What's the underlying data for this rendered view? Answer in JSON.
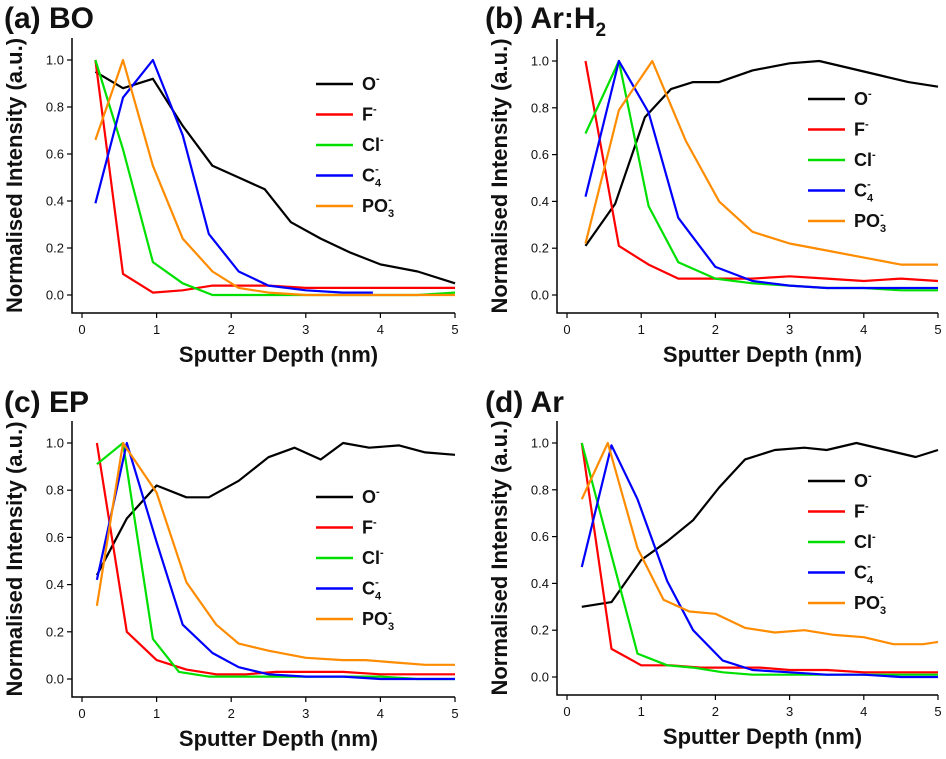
{
  "chart_data": [
    {
      "type": "line",
      "panel_label": "(a) BO",
      "panel_label_main": "(a) BO",
      "panel_label_sub": "",
      "xlabel": "Sputter Depth (nm)",
      "ylabel": "Normalised Intensity (a.u.)",
      "xlim": [
        0,
        5
      ],
      "ylim": [
        0,
        1.0
      ],
      "xticks": [
        "0",
        "1",
        "2",
        "3",
        "4",
        "5"
      ],
      "yticks": [
        "0.0",
        "0.2",
        "0.4",
        "0.6",
        "0.8",
        "1.0"
      ],
      "legend_position": "right",
      "series": [
        {
          "name": "O",
          "sup": "-",
          "sub": "",
          "color": "#000000",
          "x": [
            0.18,
            0.55,
            0.95,
            1.35,
            1.75,
            2.1,
            2.45,
            2.8,
            3.2,
            3.6,
            4.0,
            4.5,
            5.0
          ],
          "y": [
            0.95,
            0.88,
            0.92,
            0.72,
            0.55,
            0.5,
            0.45,
            0.31,
            0.24,
            0.18,
            0.13,
            0.1,
            0.05
          ]
        },
        {
          "name": "F",
          "sup": "-",
          "sub": "",
          "color": "#ff0000",
          "x": [
            0.18,
            0.55,
            0.95,
            1.35,
            1.75,
            2.1,
            2.5,
            3.0,
            3.5,
            4.0,
            4.5,
            5.0
          ],
          "y": [
            1.0,
            0.09,
            0.01,
            0.02,
            0.04,
            0.04,
            0.04,
            0.03,
            0.03,
            0.03,
            0.03,
            0.03
          ]
        },
        {
          "name": "Cl",
          "sup": "-",
          "sub": "",
          "color": "#00e000",
          "x": [
            0.18,
            0.55,
            0.95,
            1.35,
            1.75,
            2.1,
            2.5,
            3.0,
            3.5,
            4.0,
            4.5,
            5.0
          ],
          "y": [
            1.0,
            0.62,
            0.14,
            0.05,
            0.0,
            0.0,
            0.0,
            0.0,
            0.0,
            0.0,
            0.0,
            0.01
          ]
        },
        {
          "name": "C",
          "sup": "-",
          "sub": "4",
          "color": "#0000ff",
          "x": [
            0.18,
            0.55,
            0.95,
            1.35,
            1.7,
            2.1,
            2.5,
            3.0,
            3.5,
            3.9
          ],
          "y": [
            0.39,
            0.84,
            1.0,
            0.68,
            0.26,
            0.1,
            0.04,
            0.02,
            0.01,
            0.01
          ]
        },
        {
          "name": "PO",
          "sup": "-",
          "sub": "3",
          "color": "#ff8c00",
          "x": [
            0.18,
            0.55,
            0.95,
            1.35,
            1.75,
            2.1,
            2.5,
            3.0,
            3.5,
            4.0,
            4.5,
            5.0
          ],
          "y": [
            0.66,
            1.0,
            0.55,
            0.24,
            0.1,
            0.03,
            0.01,
            0.0,
            0.0,
            0.0,
            0.0,
            0.0
          ]
        }
      ]
    },
    {
      "type": "line",
      "panel_label": "(b) Ar:H2",
      "panel_label_main": "(b) Ar:H",
      "panel_label_sub": "2",
      "xlabel": "Sputter Depth (nm)",
      "ylabel": "Normalised Intensity (a.u.)",
      "xlim": [
        0,
        5
      ],
      "ylim": [
        0,
        1.0
      ],
      "xticks": [
        "0",
        "1",
        "2",
        "3",
        "4",
        "5"
      ],
      "yticks": [
        "0.0",
        "0.2",
        "0.4",
        "0.6",
        "0.8",
        "1.0"
      ],
      "legend_position": "right",
      "series": [
        {
          "name": "O",
          "sup": "-",
          "sub": "",
          "color": "#000000",
          "x": [
            0.25,
            0.65,
            1.05,
            1.4,
            1.7,
            2.05,
            2.5,
            3.0,
            3.4,
            3.8,
            4.2,
            4.6,
            5.0
          ],
          "y": [
            0.21,
            0.39,
            0.76,
            0.88,
            0.91,
            0.91,
            0.96,
            0.99,
            1.0,
            0.97,
            0.94,
            0.91,
            0.89
          ]
        },
        {
          "name": "F",
          "sup": "-",
          "sub": "",
          "color": "#ff0000",
          "x": [
            0.25,
            0.7,
            1.1,
            1.5,
            2.0,
            2.5,
            3.0,
            3.5,
            4.0,
            4.5,
            5.0
          ],
          "y": [
            1.0,
            0.21,
            0.13,
            0.07,
            0.07,
            0.07,
            0.08,
            0.07,
            0.06,
            0.07,
            0.06
          ]
        },
        {
          "name": "Cl",
          "sup": "-",
          "sub": "",
          "color": "#00e000",
          "x": [
            0.25,
            0.7,
            1.1,
            1.5,
            2.0,
            2.5,
            3.0,
            3.5,
            4.0,
            4.5,
            5.0
          ],
          "y": [
            0.69,
            1.0,
            0.38,
            0.14,
            0.07,
            0.05,
            0.04,
            0.03,
            0.03,
            0.02,
            0.02
          ]
        },
        {
          "name": "C",
          "sup": "-",
          "sub": "4",
          "color": "#0000ff",
          "x": [
            0.25,
            0.7,
            1.1,
            1.5,
            2.0,
            2.5,
            3.0,
            3.5,
            4.0,
            4.5,
            5.0
          ],
          "y": [
            0.42,
            1.0,
            0.78,
            0.33,
            0.12,
            0.06,
            0.04,
            0.03,
            0.03,
            0.03,
            0.03
          ]
        },
        {
          "name": "PO",
          "sup": "-",
          "sub": "3",
          "color": "#ff8c00",
          "x": [
            0.25,
            0.7,
            1.15,
            1.6,
            2.05,
            2.5,
            3.0,
            3.5,
            4.0,
            4.5,
            5.0
          ],
          "y": [
            0.22,
            0.79,
            1.0,
            0.66,
            0.4,
            0.27,
            0.22,
            0.19,
            0.16,
            0.13,
            0.13
          ]
        }
      ]
    },
    {
      "type": "line",
      "panel_label": "(c) EP",
      "panel_label_main": "(c) EP",
      "panel_label_sub": "",
      "xlabel": "Sputter Depth (nm)",
      "ylabel": "Normalised Intensity (a.u.)",
      "xlim": [
        0,
        5
      ],
      "ylim": [
        0,
        1.0
      ],
      "xticks": [
        "0",
        "1",
        "2",
        "3",
        "4",
        "5"
      ],
      "yticks": [
        "0.0",
        "0.2",
        "0.4",
        "0.6",
        "0.8",
        "1.0"
      ],
      "legend_position": "right",
      "series": [
        {
          "name": "O",
          "sup": "-",
          "sub": "",
          "color": "#000000",
          "x": [
            0.2,
            0.6,
            1.0,
            1.4,
            1.7,
            2.1,
            2.5,
            2.85,
            3.2,
            3.5,
            3.85,
            4.25,
            4.6,
            5.0
          ],
          "y": [
            0.44,
            0.68,
            0.82,
            0.77,
            0.77,
            0.84,
            0.94,
            0.98,
            0.93,
            1.0,
            0.98,
            0.99,
            0.96,
            0.95
          ]
        },
        {
          "name": "F",
          "sup": "-",
          "sub": "",
          "color": "#ff0000",
          "x": [
            0.2,
            0.6,
            1.0,
            1.4,
            1.8,
            2.2,
            2.6,
            3.0,
            3.5,
            4.0,
            4.5,
            5.0
          ],
          "y": [
            1.0,
            0.2,
            0.08,
            0.04,
            0.02,
            0.02,
            0.03,
            0.03,
            0.03,
            0.02,
            0.02,
            0.02
          ]
        },
        {
          "name": "Cl",
          "sup": "-",
          "sub": "",
          "color": "#00e000",
          "x": [
            0.2,
            0.55,
            0.95,
            1.3,
            1.7,
            2.1,
            2.5,
            3.0,
            3.5,
            4.0,
            4.5,
            5.0
          ],
          "y": [
            0.91,
            1.0,
            0.17,
            0.03,
            0.01,
            0.01,
            0.01,
            0.01,
            0.01,
            0.01,
            0.0,
            0.0
          ]
        },
        {
          "name": "C",
          "sup": "-",
          "sub": "4",
          "color": "#0000ff",
          "x": [
            0.2,
            0.6,
            1.0,
            1.35,
            1.75,
            2.1,
            2.5,
            3.0,
            3.5,
            4.0,
            4.5,
            5.0
          ],
          "y": [
            0.42,
            1.0,
            0.58,
            0.23,
            0.11,
            0.05,
            0.02,
            0.01,
            0.01,
            0.0,
            0.0,
            0.0
          ]
        },
        {
          "name": "PO",
          "sup": "-",
          "sub": "3",
          "color": "#ff8c00",
          "x": [
            0.2,
            0.55,
            1.0,
            1.4,
            1.8,
            2.1,
            2.5,
            3.0,
            3.5,
            3.8,
            4.2,
            4.6,
            5.0
          ],
          "y": [
            0.31,
            1.0,
            0.79,
            0.41,
            0.23,
            0.15,
            0.12,
            0.09,
            0.08,
            0.08,
            0.07,
            0.06,
            0.06
          ]
        }
      ]
    },
    {
      "type": "line",
      "panel_label": "(d) Ar",
      "panel_label_main": "(d) Ar",
      "panel_label_sub": "",
      "xlabel": "Sputter Depth (nm)",
      "ylabel": "Normalised Intensity (a.u.)",
      "xlim": [
        0,
        5
      ],
      "ylim": [
        0,
        1.0
      ],
      "xticks": [
        "0",
        "1",
        "2",
        "3",
        "4",
        "5"
      ],
      "yticks": [
        "0.0",
        "0.2",
        "0.4",
        "0.6",
        "0.8",
        "1.0"
      ],
      "legend_position": "right",
      "series": [
        {
          "name": "O",
          "sup": "-",
          "sub": "",
          "color": "#000000",
          "x": [
            0.2,
            0.6,
            1.0,
            1.35,
            1.7,
            2.05,
            2.4,
            2.8,
            3.2,
            3.5,
            3.9,
            4.3,
            4.7,
            5.0
          ],
          "y": [
            0.3,
            0.32,
            0.5,
            0.58,
            0.67,
            0.81,
            0.93,
            0.97,
            0.98,
            0.97,
            1.0,
            0.97,
            0.94,
            0.97
          ]
        },
        {
          "name": "F",
          "sup": "-",
          "sub": "",
          "color": "#ff0000",
          "x": [
            0.2,
            0.6,
            1.0,
            1.4,
            1.8,
            2.2,
            2.6,
            3.0,
            3.5,
            4.0,
            4.5,
            5.0
          ],
          "y": [
            1.0,
            0.12,
            0.05,
            0.05,
            0.04,
            0.04,
            0.04,
            0.03,
            0.03,
            0.02,
            0.02,
            0.02
          ]
        },
        {
          "name": "Cl",
          "sup": "-",
          "sub": "",
          "color": "#00e000",
          "x": [
            0.2,
            0.6,
            0.95,
            1.35,
            1.7,
            2.1,
            2.5,
            3.0,
            3.5,
            4.0,
            4.5,
            5.0
          ],
          "y": [
            1.0,
            0.52,
            0.1,
            0.05,
            0.04,
            0.02,
            0.01,
            0.01,
            0.01,
            0.01,
            0.01,
            0.01
          ]
        },
        {
          "name": "C",
          "sup": "-",
          "sub": "4",
          "color": "#0000ff",
          "x": [
            0.2,
            0.6,
            0.95,
            1.35,
            1.7,
            2.1,
            2.5,
            3.0,
            3.5,
            4.0,
            4.5,
            5.0
          ],
          "y": [
            0.47,
            0.99,
            0.76,
            0.41,
            0.2,
            0.07,
            0.03,
            0.02,
            0.01,
            0.01,
            0.0,
            0.0
          ]
        },
        {
          "name": "PO",
          "sup": "-",
          "sub": "3",
          "color": "#ff8c00",
          "x": [
            0.2,
            0.55,
            0.95,
            1.3,
            1.65,
            2.0,
            2.4,
            2.8,
            3.2,
            3.6,
            4.0,
            4.4,
            4.8,
            5.0
          ],
          "y": [
            0.76,
            1.0,
            0.55,
            0.33,
            0.28,
            0.27,
            0.21,
            0.19,
            0.2,
            0.18,
            0.17,
            0.14,
            0.14,
            0.15
          ]
        }
      ]
    }
  ]
}
